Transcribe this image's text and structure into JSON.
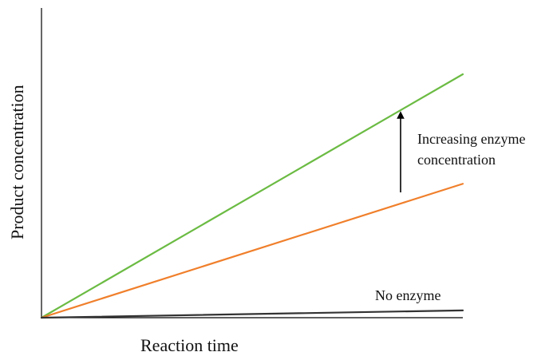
{
  "chart_data": {
    "type": "line",
    "title": "",
    "xlabel": "Reaction time",
    "ylabel": "Product concentration",
    "xlim": [
      0,
      10
    ],
    "ylim": [
      0,
      10
    ],
    "grid": false,
    "series": [
      {
        "color": "#6bbb43",
        "x": [
          0,
          10
        ],
        "y": [
          0,
          10
        ]
      },
      {
        "color": "#f07f2b",
        "x": [
          0,
          10
        ],
        "y": [
          0,
          5.5
        ]
      },
      {
        "name": "No enzyme",
        "color": "#333333",
        "x": [
          0,
          10
        ],
        "y": [
          0,
          0.3
        ]
      }
    ],
    "annotations": [
      {
        "text_lines": [
          "Increasing enzyme",
          "concentration"
        ],
        "arrow": true
      },
      {
        "text": "No enzyme"
      }
    ]
  }
}
